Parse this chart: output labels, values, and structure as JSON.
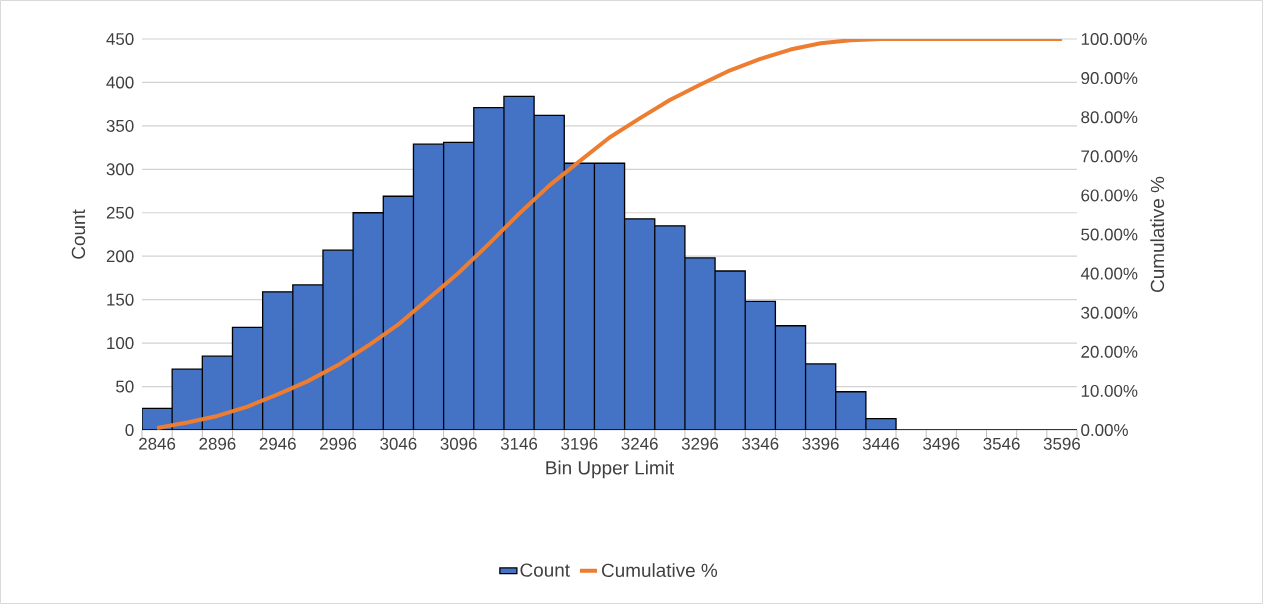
{
  "chart_data": {
    "type": "bar",
    "xlabel": "Bin Upper Limit",
    "ylabel": "Count",
    "y2label": "Cumulative %",
    "categories": [
      "2846",
      null,
      "2896",
      null,
      "2946",
      null,
      "2996",
      null,
      "3046",
      null,
      "3096",
      null,
      "3146",
      null,
      "3196",
      null,
      "3246",
      null,
      "3296",
      null,
      "3346",
      null,
      "3396",
      null,
      "3446",
      null,
      "3496",
      null,
      "3546",
      null,
      "3596"
    ],
    "ylim": [
      0,
      450
    ],
    "yticks": [
      0,
      50,
      100,
      150,
      200,
      250,
      300,
      350,
      400,
      450
    ],
    "y2lim": [
      0,
      100
    ],
    "y2ticks": [
      {
        "value": 0,
        "label": "0.00%"
      },
      {
        "value": 10,
        "label": "10.00%"
      },
      {
        "value": 20,
        "label": "20.00%"
      },
      {
        "value": 30,
        "label": "30.00%"
      },
      {
        "value": 40,
        "label": "40.00%"
      },
      {
        "value": 50,
        "label": "50.00%"
      },
      {
        "value": 60,
        "label": "60.00%"
      },
      {
        "value": 70,
        "label": "70.00%"
      },
      {
        "value": 80,
        "label": "80.00%"
      },
      {
        "value": 90,
        "label": "90.00%"
      },
      {
        "value": 100,
        "label": "100.00%"
      }
    ],
    "grid": "y",
    "legend": "bottom",
    "series": [
      {
        "name": "Count",
        "color": "#4472c4",
        "values": [
          25,
          70,
          85,
          118,
          159,
          167,
          207,
          250,
          269,
          329,
          331,
          371,
          384,
          362,
          307,
          307,
          243,
          235,
          198,
          183,
          148,
          120,
          76,
          44,
          13,
          0,
          0,
          0,
          0,
          0,
          0
        ]
      },
      {
        "name": "Cumulative %",
        "type": "line",
        "axis": "y2",
        "color": "#ed7d31",
        "values": [
          0.5,
          1.9,
          3.6,
          6.0,
          9.1,
          12.5,
          16.6,
          21.6,
          27.0,
          33.6,
          40.2,
          47.6,
          55.3,
          62.5,
          68.7,
          74.8,
          79.7,
          84.4,
          88.3,
          92.0,
          94.9,
          97.3,
          98.9,
          99.7,
          100,
          100,
          100,
          100,
          100,
          100,
          100
        ]
      }
    ]
  }
}
